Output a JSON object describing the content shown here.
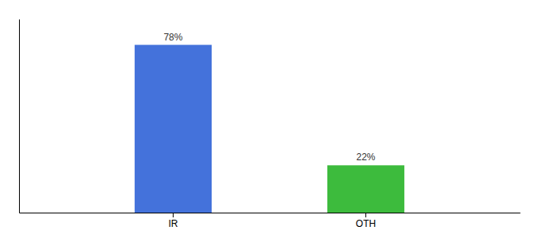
{
  "chart_data": {
    "type": "bar",
    "categories": [
      "IR",
      "OTH"
    ],
    "values": [
      78,
      22
    ],
    "value_labels": [
      "78%",
      "22%"
    ],
    "colors": [
      "#4472db",
      "#3dbb3d"
    ],
    "ylim": [
      0,
      90
    ],
    "data_labels": true,
    "tick_labels": "x",
    "grid": false
  }
}
